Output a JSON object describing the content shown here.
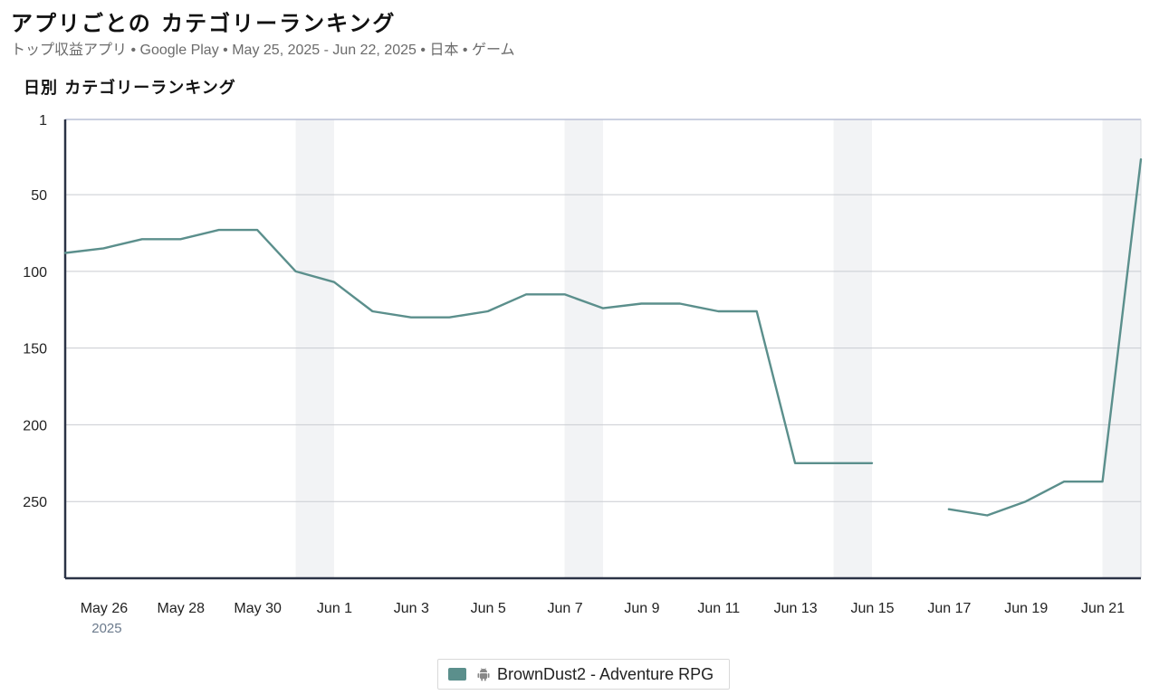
{
  "header": {
    "title": "アプリごとの カテゴリーランキング",
    "subtitle_metric": "トップ収益アプリ",
    "subtitle_store": "Google Play",
    "subtitle_range": "May 25, 2025 - Jun 22, 2025",
    "subtitle_country": "日本",
    "subtitle_category": "ゲーム",
    "separator": "•"
  },
  "section": {
    "title": "日別 カテゴリーランキング"
  },
  "colors": {
    "series": "#5b8f8c",
    "weekend_band": "#f2f3f5",
    "grid": "#c9ccd1",
    "axis": "#2b3346"
  },
  "legend": {
    "label": "BrownDust2 - Adventure RPG",
    "icon": "android-icon"
  },
  "chart_data": {
    "type": "line",
    "title": "日別 カテゴリーランキング",
    "y_inverted": true,
    "ylim": [
      1,
      300
    ],
    "yticks": [
      1,
      50,
      100,
      150,
      200,
      250
    ],
    "x": [
      "2025-05-25",
      "2025-05-26",
      "2025-05-27",
      "2025-05-28",
      "2025-05-29",
      "2025-05-30",
      "2025-05-31",
      "2025-06-01",
      "2025-06-02",
      "2025-06-03",
      "2025-06-04",
      "2025-06-05",
      "2025-06-06",
      "2025-06-07",
      "2025-06-08",
      "2025-06-09",
      "2025-06-10",
      "2025-06-11",
      "2025-06-12",
      "2025-06-13",
      "2025-06-14",
      "2025-06-15",
      "2025-06-16",
      "2025-06-17",
      "2025-06-18",
      "2025-06-19",
      "2025-06-20",
      "2025-06-21",
      "2025-06-22"
    ],
    "x_tick_labels": [
      {
        "date": "2025-05-26",
        "label": "May 26",
        "sub": "2025"
      },
      {
        "date": "2025-05-28",
        "label": "May 28"
      },
      {
        "date": "2025-05-30",
        "label": "May 30"
      },
      {
        "date": "2025-06-01",
        "label": "Jun 1"
      },
      {
        "date": "2025-06-03",
        "label": "Jun 3"
      },
      {
        "date": "2025-06-05",
        "label": "Jun 5"
      },
      {
        "date": "2025-06-07",
        "label": "Jun 7"
      },
      {
        "date": "2025-06-09",
        "label": "Jun 9"
      },
      {
        "date": "2025-06-11",
        "label": "Jun 11"
      },
      {
        "date": "2025-06-13",
        "label": "Jun 13"
      },
      {
        "date": "2025-06-15",
        "label": "Jun 15"
      },
      {
        "date": "2025-06-17",
        "label": "Jun 17"
      },
      {
        "date": "2025-06-19",
        "label": "Jun 19"
      },
      {
        "date": "2025-06-21",
        "label": "Jun 21"
      }
    ],
    "weekend_bands": [
      [
        "2025-05-31",
        "2025-06-01"
      ],
      [
        "2025-06-07",
        "2025-06-08"
      ],
      [
        "2025-06-14",
        "2025-06-15"
      ],
      [
        "2025-06-21",
        "2025-06-22"
      ]
    ],
    "series": [
      {
        "name": "BrownDust2 - Adventure RPG",
        "values": [
          88,
          85,
          79,
          79,
          73,
          73,
          100,
          107,
          126,
          130,
          130,
          126,
          115,
          115,
          124,
          121,
          121,
          126,
          126,
          225,
          225,
          225,
          null,
          255,
          259,
          250,
          237,
          237,
          27
        ]
      }
    ],
    "grid": true
  }
}
